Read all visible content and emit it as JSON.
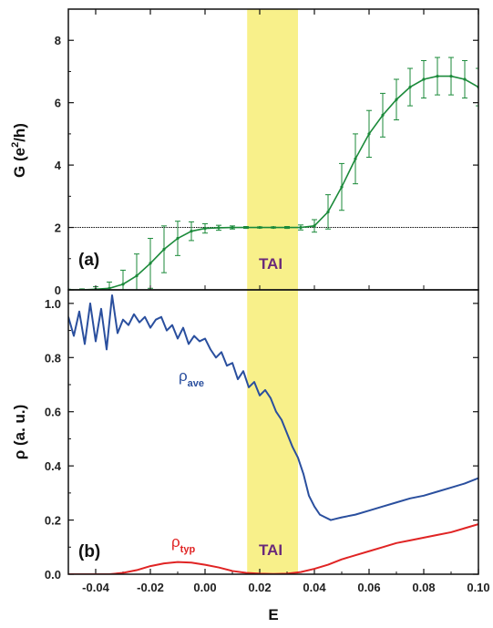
{
  "colors": {
    "band": "#f8f08a",
    "conductance": "#1b8a3a",
    "rho_ave": "#2a4f9e",
    "rho_typ": "#e02424",
    "tai_text": "#6a2a7a",
    "axis": "#111111"
  },
  "chart_data": [
    {
      "panel_label": "(a)",
      "type": "line",
      "xlabel": "E",
      "ylabel": "G (e",
      "ylabel_sup": "2",
      "ylabel_tail": "/h)",
      "xlim": [
        -0.05,
        0.1
      ],
      "ylim": [
        0,
        9
      ],
      "yticks": [
        "0",
        "2",
        "4",
        "6",
        "8"
      ],
      "reference_line_y": 2,
      "shaded_band_x": [
        0.0154,
        0.034
      ],
      "band_label": "TAI",
      "series": [
        {
          "color": "#1b8a3a",
          "error_bars": true,
          "x": [
            -0.05,
            -0.045,
            -0.04,
            -0.035,
            -0.03,
            -0.025,
            -0.02,
            -0.015,
            -0.01,
            -0.005,
            0.0,
            0.005,
            0.01,
            0.015,
            0.02,
            0.025,
            0.03,
            0.035,
            0.04,
            0.045,
            0.05,
            0.055,
            0.06,
            0.065,
            0.07,
            0.075,
            0.08,
            0.085,
            0.09,
            0.095,
            0.1
          ],
          "values": [
            0.0,
            0.0,
            0.02,
            0.05,
            0.18,
            0.45,
            0.85,
            1.3,
            1.65,
            1.88,
            1.97,
            1.99,
            2.0,
            2.0,
            2.0,
            2.0,
            2.0,
            2.0,
            2.05,
            2.5,
            3.3,
            4.2,
            5.0,
            5.6,
            6.1,
            6.5,
            6.75,
            6.85,
            6.85,
            6.75,
            6.5
          ],
          "errors": [
            0.02,
            0.03,
            0.08,
            0.2,
            0.45,
            0.7,
            0.8,
            0.75,
            0.55,
            0.3,
            0.15,
            0.08,
            0.05,
            0.03,
            0.02,
            0.02,
            0.03,
            0.08,
            0.2,
            0.55,
            0.75,
            0.8,
            0.75,
            0.7,
            0.65,
            0.6,
            0.6,
            0.6,
            0.6,
            0.6,
            0.6
          ]
        }
      ]
    },
    {
      "panel_label": "(b)",
      "type": "line",
      "xlabel": "E",
      "ylabel": "ρ (a. u.)",
      "xlim": [
        -0.05,
        0.1
      ],
      "ylim": [
        0,
        1.05
      ],
      "yticks": [
        "0.0",
        "0.2",
        "0.4",
        "0.6",
        "0.8",
        "1.0"
      ],
      "xticks": [
        "-0.04",
        "-0.02",
        "0.00",
        "0.02",
        "0.04",
        "0.06",
        "0.08",
        "0.10"
      ],
      "shaded_band_x": [
        0.0154,
        0.034
      ],
      "band_label": "TAI",
      "series": [
        {
          "name": "ρ",
          "name_sub": "ave",
          "color": "#2a4f9e",
          "x": [
            -0.05,
            -0.048,
            -0.046,
            -0.044,
            -0.042,
            -0.04,
            -0.038,
            -0.036,
            -0.034,
            -0.032,
            -0.03,
            -0.028,
            -0.026,
            -0.024,
            -0.022,
            -0.02,
            -0.018,
            -0.016,
            -0.014,
            -0.012,
            -0.01,
            -0.008,
            -0.006,
            -0.004,
            -0.002,
            0.0,
            0.002,
            0.004,
            0.006,
            0.008,
            0.01,
            0.012,
            0.014,
            0.016,
            0.018,
            0.02,
            0.022,
            0.024,
            0.026,
            0.028,
            0.03,
            0.032,
            0.034,
            0.036,
            0.038,
            0.04,
            0.042,
            0.044,
            0.046,
            0.048,
            0.05,
            0.055,
            0.06,
            0.065,
            0.07,
            0.075,
            0.08,
            0.085,
            0.09,
            0.095,
            0.1
          ],
          "values": [
            0.95,
            0.88,
            0.97,
            0.85,
            1.0,
            0.86,
            0.98,
            0.83,
            1.03,
            0.89,
            0.94,
            0.92,
            0.96,
            0.93,
            0.95,
            0.91,
            0.94,
            0.95,
            0.9,
            0.92,
            0.87,
            0.91,
            0.85,
            0.88,
            0.86,
            0.87,
            0.83,
            0.8,
            0.82,
            0.77,
            0.78,
            0.72,
            0.75,
            0.69,
            0.71,
            0.66,
            0.68,
            0.65,
            0.6,
            0.57,
            0.52,
            0.47,
            0.43,
            0.37,
            0.29,
            0.25,
            0.22,
            0.21,
            0.2,
            0.205,
            0.21,
            0.22,
            0.235,
            0.25,
            0.265,
            0.28,
            0.29,
            0.305,
            0.32,
            0.335,
            0.355
          ]
        },
        {
          "name": "ρ",
          "name_sub": "typ",
          "color": "#e02424",
          "x": [
            -0.05,
            -0.045,
            -0.04,
            -0.035,
            -0.03,
            -0.025,
            -0.02,
            -0.015,
            -0.01,
            -0.005,
            0.0,
            0.005,
            0.01,
            0.015,
            0.02,
            0.025,
            0.03,
            0.035,
            0.04,
            0.045,
            0.05,
            0.055,
            0.06,
            0.065,
            0.07,
            0.075,
            0.08,
            0.085,
            0.09,
            0.095,
            0.1
          ],
          "values": [
            0.0,
            0.0,
            0.0,
            0.0,
            0.005,
            0.015,
            0.03,
            0.04,
            0.045,
            0.043,
            0.035,
            0.025,
            0.012,
            0.005,
            0.002,
            0.001,
            0.002,
            0.008,
            0.02,
            0.035,
            0.055,
            0.07,
            0.085,
            0.1,
            0.115,
            0.125,
            0.135,
            0.145,
            0.155,
            0.17,
            0.185
          ]
        }
      ]
    }
  ]
}
